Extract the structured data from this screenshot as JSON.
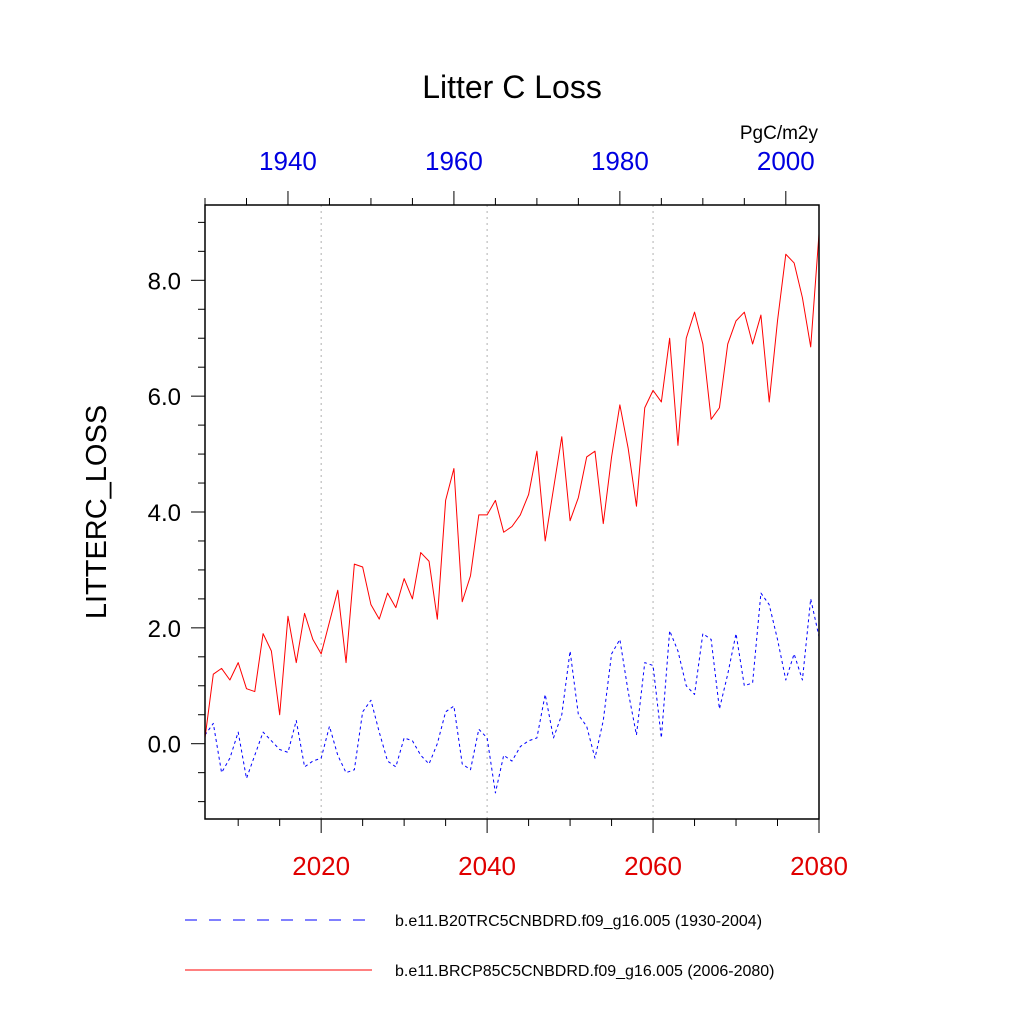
{
  "chart_data": {
    "type": "line",
    "title": "Litter C Loss",
    "ylabel": "LITTERC_LOSS",
    "units": "PgC/m2y",
    "ylim": [
      -1.3,
      9.3
    ],
    "yticks": [
      0,
      2,
      4,
      6,
      8
    ],
    "ytick_labels": [
      "0.0",
      "2.0",
      "4.0",
      "6.0",
      "8.0"
    ],
    "grid_years_bottom": [
      2020,
      2040,
      2060
    ],
    "bottom_axis": {
      "color": "#e00000",
      "range": [
        2006,
        2080
      ],
      "ticks": [
        2020,
        2040,
        2060,
        2080
      ],
      "tick_labels": [
        "2020",
        "2040",
        "2060",
        "2080"
      ]
    },
    "top_axis": {
      "color": "#0000e0",
      "range": [
        1930,
        2004
      ],
      "ticks": [
        1940,
        1960,
        1980,
        2000
      ],
      "tick_labels": [
        "1940",
        "1960",
        "1980",
        "2000"
      ]
    },
    "series": [
      {
        "name": "b.e11.B20TRC5CNBDRD.f09_g16.005 (1930-2004)",
        "color": "#0000ff",
        "style": "dashed",
        "axis": "top",
        "start_year": 1930,
        "values": [
          0.15,
          0.35,
          -0.5,
          -0.25,
          0.2,
          -0.6,
          -0.2,
          0.2,
          0.05,
          -0.1,
          -0.15,
          0.4,
          -0.4,
          -0.3,
          -0.25,
          0.3,
          -0.2,
          -0.5,
          -0.45,
          0.55,
          0.75,
          0.2,
          -0.3,
          -0.4,
          0.1,
          0.05,
          -0.2,
          -0.35,
          0.0,
          0.55,
          0.65,
          -0.35,
          -0.45,
          0.25,
          0.1,
          -0.85,
          -0.2,
          -0.3,
          -0.05,
          0.05,
          0.1,
          0.85,
          0.1,
          0.5,
          1.6,
          0.5,
          0.3,
          -0.25,
          0.4,
          1.55,
          1.8,
          0.9,
          0.15,
          1.4,
          1.35,
          0.1,
          1.95,
          1.6,
          1.0,
          0.85,
          1.9,
          1.8,
          0.6,
          1.2,
          1.9,
          1.0,
          1.05,
          2.6,
          2.4,
          1.8,
          1.1,
          1.55,
          1.1,
          2.5,
          1.85
        ]
      },
      {
        "name": "b.e11.BRCP85C5CNBDRD.f09_g16.005 (2006-2080)",
        "color": "#ff0000",
        "style": "solid",
        "axis": "bottom",
        "start_year": 2006,
        "values": [
          0.1,
          1.2,
          1.3,
          1.1,
          1.4,
          0.95,
          0.9,
          1.9,
          1.6,
          0.5,
          2.2,
          1.4,
          2.25,
          1.8,
          1.55,
          2.1,
          2.65,
          1.4,
          3.1,
          3.05,
          2.4,
          2.15,
          2.6,
          2.35,
          2.85,
          2.5,
          3.3,
          3.15,
          2.15,
          4.2,
          4.75,
          2.45,
          2.9,
          3.95,
          3.95,
          4.2,
          3.65,
          3.75,
          3.95,
          4.3,
          5.05,
          3.5,
          4.4,
          5.3,
          3.85,
          4.25,
          4.95,
          5.05,
          3.8,
          4.95,
          5.85,
          5.1,
          4.1,
          5.8,
          6.1,
          5.9,
          7.0,
          5.15,
          7.0,
          7.45,
          6.9,
          5.6,
          5.8,
          6.9,
          7.3,
          7.45,
          6.9,
          7.4,
          5.9,
          7.3,
          8.45,
          8.3,
          7.7,
          6.85,
          8.8
        ]
      }
    ]
  }
}
